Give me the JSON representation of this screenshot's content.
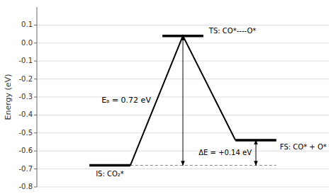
{
  "chart_data": {
    "type": "line",
    "ylabel": "Energy (eV)",
    "categories": [
      "IS: CO₂*",
      "TS: CO*----O*",
      "FS: CO* + O*"
    ],
    "values": [
      -0.68,
      0.04,
      -0.54
    ],
    "color": "#000000",
    "annotations": [
      "Eₐ = 0.72 eV",
      "ΔE = +0.14 eV"
    ],
    "ylim": [
      -0.8,
      0.2
    ],
    "yticks": [
      -0.8,
      -0.7,
      -0.6,
      -0.5,
      -0.4,
      -0.3,
      -0.2,
      -0.1,
      {
        "value": 0,
        "label": "0.0"
      },
      0.1
    ],
    "grid": true
  }
}
